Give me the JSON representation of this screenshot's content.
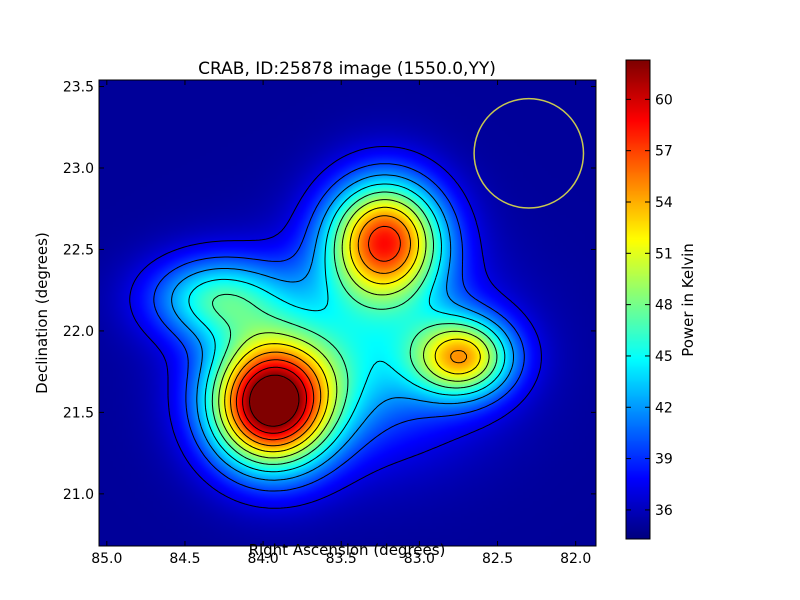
{
  "chart_data": {
    "type": "heatmap",
    "title": "CRAB, ID:25878 image (1550.0,YY)",
    "xlabel": "Right Ascension (degrees)",
    "ylabel": "Declination (degrees)",
    "colorbar_label": "Power in Kelvin",
    "colormap": "jet",
    "contours": true,
    "x_inverted": true,
    "xlim": [
      85.05,
      81.87
    ],
    "ylim": [
      20.68,
      23.54
    ],
    "x_ticks": [
      85.0,
      84.5,
      84.0,
      83.5,
      83.0,
      82.5,
      82.0
    ],
    "x_tick_labels": [
      "85.0",
      "84.5",
      "84.0",
      "83.5",
      "83.0",
      "82.5",
      "82.0"
    ],
    "y_ticks": [
      21.0,
      21.5,
      22.0,
      22.5,
      23.0,
      23.5
    ],
    "y_tick_labels": [
      "21.0",
      "21.5",
      "22.0",
      "22.5",
      "23.0",
      "23.5"
    ],
    "colorbar_range": [
      34.3,
      62.3
    ],
    "colorbar_ticks": [
      36,
      39,
      42,
      45,
      48,
      51,
      54,
      57,
      60
    ],
    "colorbar_tick_labels": [
      "36",
      "39",
      "42",
      "45",
      "48",
      "51",
      "54",
      "57",
      "60"
    ],
    "background_level": 35.0,
    "components": [
      {
        "ra": 83.95,
        "dec": 21.55,
        "peak": 27.5,
        "sigma_ra": 0.27,
        "sigma_dec": 0.27
      },
      {
        "ra": 83.22,
        "dec": 22.56,
        "peak": 22.0,
        "sigma_ra": 0.26,
        "sigma_dec": 0.26
      },
      {
        "ra": 82.72,
        "dec": 21.84,
        "peak": 16.0,
        "sigma_ra": 0.22,
        "sigma_dec": 0.17
      },
      {
        "ra": 84.3,
        "dec": 22.2,
        "peak": 10.0,
        "sigma_ra": 0.3,
        "sigma_dec": 0.18
      },
      {
        "ra": 83.4,
        "dec": 21.85,
        "peak": 8.0,
        "sigma_ra": 0.55,
        "sigma_dec": 0.4
      }
    ],
    "beam_circle": {
      "ra": 82.3,
      "dec": 23.09,
      "radius_deg": 0.35,
      "color": "#c8c850"
    }
  }
}
